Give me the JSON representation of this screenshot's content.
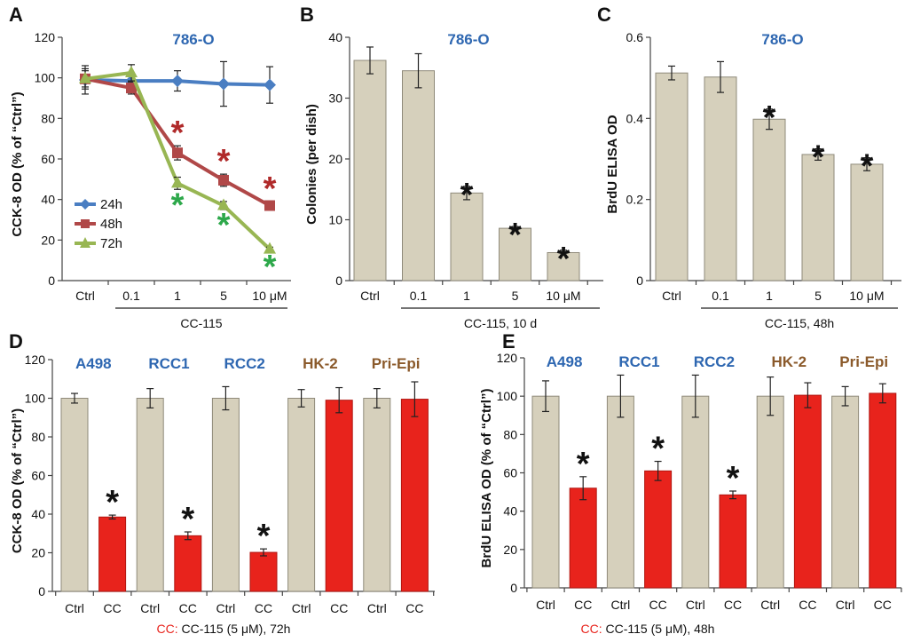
{
  "colors": {
    "bar_ctrl": "#d6d0bc",
    "bar_ctrl_edge": "#8f8a7a",
    "bar_cc": "#e8231c",
    "bar_cc_edge": "#b01510",
    "title_blue": "#2e67b1",
    "title_brown": "#8b5a2b",
    "s24": "#4a7ec2",
    "s48": "#b04848",
    "s72": "#98b653",
    "star_black": "#111111",
    "star_red": "#b02a2a",
    "star_green": "#2da84a"
  },
  "chart_data": [
    {
      "panel": "A",
      "type": "line",
      "title": "786-O",
      "ylabel": "CCK-8 OD (% of “Ctrl”)",
      "xlabel": "CC-115",
      "categories": [
        "Ctrl",
        "0.1",
        "1",
        "5",
        "10 μM"
      ],
      "yticks": [
        "0",
        "20",
        "40",
        "60",
        "80",
        "100",
        "120"
      ],
      "ylim": [
        0,
        120
      ],
      "series": [
        {
          "name": "24h",
          "values": [
            99,
            98.5,
            98.5,
            97,
            96.5
          ],
          "errors": [
            7,
            3,
            5,
            11,
            9
          ],
          "stars": [
            false,
            false,
            false,
            false,
            false
          ]
        },
        {
          "name": "48h",
          "values": [
            99.5,
            95,
            63,
            49.5,
            37
          ],
          "errors": [
            5,
            3,
            3.5,
            3,
            2
          ],
          "stars": [
            false,
            false,
            true,
            true,
            true
          ]
        },
        {
          "name": "72h",
          "values": [
            99.5,
            102.5,
            48,
            37,
            15.5
          ],
          "errors": [
            4,
            4,
            3,
            2,
            1
          ],
          "stars": [
            false,
            false,
            true,
            true,
            true
          ]
        }
      ],
      "star_label": "*"
    },
    {
      "panel": "B",
      "type": "bar",
      "title": "786-O",
      "ylabel": "Colonies (per dish)",
      "xlabel": "CC-115, 10 d",
      "categories": [
        "Ctrl",
        "0.1",
        "1",
        "5",
        "10 μM"
      ],
      "values": [
        36.2,
        34.5,
        14.4,
        8.6,
        4.6
      ],
      "errors": [
        2.2,
        2.8,
        1.1,
        0.3,
        0.4
      ],
      "stars": [
        false,
        false,
        true,
        true,
        true
      ],
      "yticks": [
        "0",
        "10",
        "20",
        "30",
        "40"
      ],
      "ylim": [
        0,
        40
      ],
      "star_label": "*"
    },
    {
      "panel": "C",
      "type": "bar",
      "title": "786-O",
      "ylabel": "BrdU ELISA OD",
      "xlabel": "CC-115, 48h",
      "categories": [
        "Ctrl",
        "0.1",
        "1",
        "5",
        "10 μM"
      ],
      "values": [
        0.512,
        0.502,
        0.398,
        0.311,
        0.287
      ],
      "errors": [
        0.017,
        0.038,
        0.025,
        0.014,
        0.016
      ],
      "stars": [
        false,
        false,
        true,
        true,
        true
      ],
      "yticks": [
        "0",
        "0.2",
        "0.4",
        "0.6"
      ],
      "ylim": [
        0,
        0.6
      ],
      "star_label": "*"
    },
    {
      "panel": "D",
      "type": "bar",
      "ylabel": "CCK-8 OD (% of “Ctrl”)",
      "footnote_key": "CC:",
      "footnote_text": " CC-115 (5 μM), 72h",
      "groups": [
        {
          "name": "A498",
          "color_key": "title_blue"
        },
        {
          "name": "RCC1",
          "color_key": "title_blue"
        },
        {
          "name": "RCC2",
          "color_key": "title_blue"
        },
        {
          "name": "HK-2",
          "color_key": "title_brown"
        },
        {
          "name": "Pri-Epi",
          "color_key": "title_brown"
        }
      ],
      "categories": [
        "Ctrl",
        "CC",
        "Ctrl",
        "CC",
        "Ctrl",
        "CC",
        "Ctrl",
        "CC",
        "Ctrl",
        "CC"
      ],
      "values": [
        100,
        38.5,
        100,
        28.8,
        100,
        20.2,
        100,
        99,
        100,
        99.5
      ],
      "errors": [
        2.5,
        1,
        5,
        2,
        6,
        1.8,
        4.5,
        6.5,
        5,
        9
      ],
      "stars": [
        false,
        true,
        false,
        true,
        false,
        true,
        false,
        false,
        false,
        false
      ],
      "yticks": [
        "0",
        "20",
        "40",
        "60",
        "80",
        "100",
        "120"
      ],
      "ylim": [
        0,
        120
      ],
      "star_label": "*"
    },
    {
      "panel": "E",
      "type": "bar",
      "ylabel": "BrdU ELISA OD (% of “Ctrl”)",
      "footnote_key": "CC:",
      "footnote_text": " CC-115 (5 μM), 48h",
      "groups": [
        {
          "name": "A498",
          "color_key": "title_blue"
        },
        {
          "name": "RCC1",
          "color_key": "title_blue"
        },
        {
          "name": "RCC2",
          "color_key": "title_blue"
        },
        {
          "name": "HK-2",
          "color_key": "title_brown"
        },
        {
          "name": "Pri-Epi",
          "color_key": "title_brown"
        }
      ],
      "categories": [
        "Ctrl",
        "CC",
        "Ctrl",
        "CC",
        "Ctrl",
        "CC",
        "Ctrl",
        "CC",
        "Ctrl",
        "CC"
      ],
      "values": [
        100,
        52,
        100,
        61,
        100,
        48.5,
        100,
        100.5,
        100,
        101.5
      ],
      "errors": [
        8,
        6,
        11,
        5,
        11,
        2,
        10,
        6.5,
        5,
        5
      ],
      "stars": [
        false,
        true,
        false,
        true,
        false,
        true,
        false,
        false,
        false,
        false
      ],
      "yticks": [
        "0",
        "20",
        "40",
        "60",
        "80",
        "100",
        "120"
      ],
      "ylim": [
        0,
        120
      ],
      "star_label": "*"
    }
  ]
}
